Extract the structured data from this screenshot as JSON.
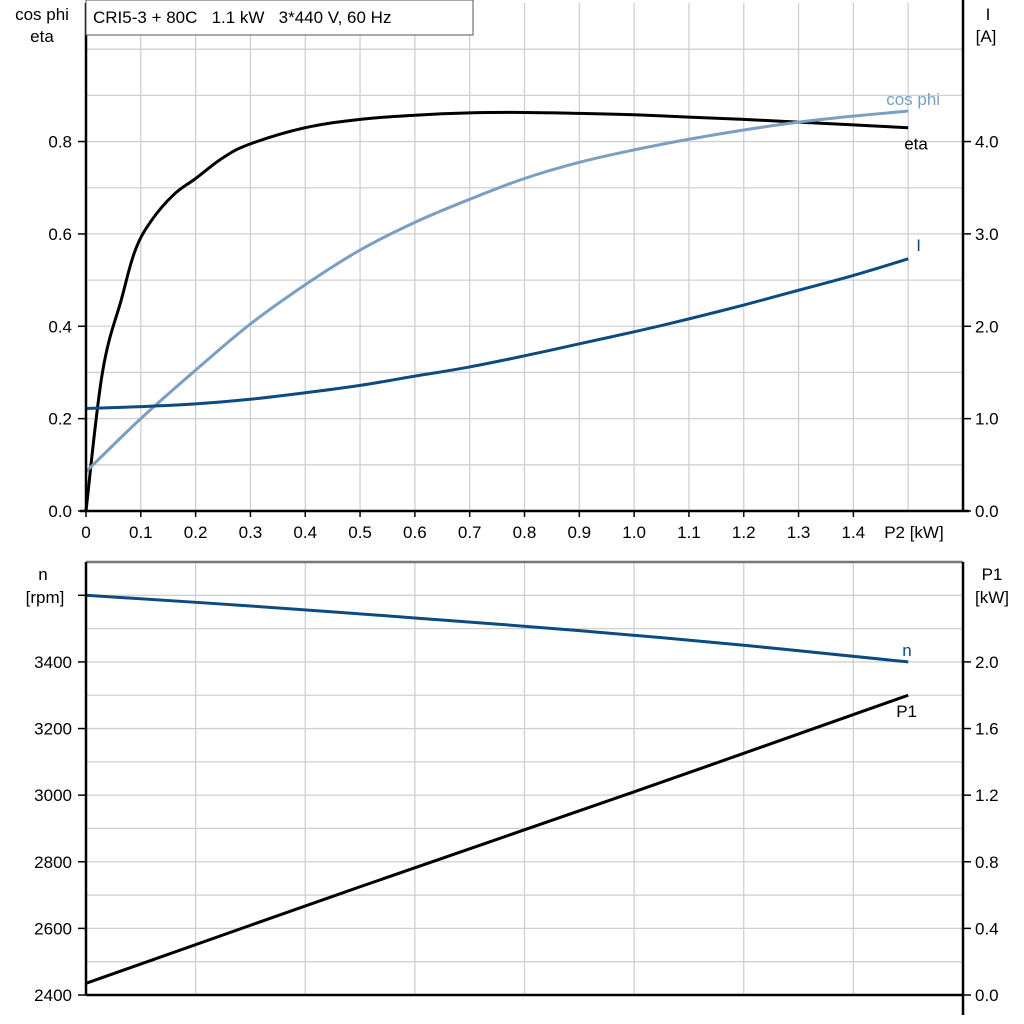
{
  "title": "CRI5-3 + 80C   1.1 kW   3*440 V, 60 Hz",
  "colors": {
    "eta": "#000000",
    "cos_phi": "#7a9fc2",
    "I": "#0d4a80",
    "n": "#0d4a80",
    "P1": "#000000",
    "grid": "#d0d0d0"
  },
  "chart_data": [
    {
      "type": "line",
      "xlabel": "P2 [kW]",
      "xlim": [
        0,
        1.6
      ],
      "x_ticks": [
        "0",
        "0.1",
        "0.2",
        "0.3",
        "0.4",
        "0.5",
        "0.6",
        "0.7",
        "0.8",
        "0.9",
        "1.0",
        "1.1",
        "1.2",
        "1.3",
        "1.4"
      ],
      "ylabel_left": [
        "cos phi",
        "eta"
      ],
      "ylim_left": [
        0,
        1.1
      ],
      "y_ticks_left": [
        "0.0",
        "0.2",
        "0.4",
        "0.6",
        "0.8"
      ],
      "ylabel_right": [
        "I",
        "[A]"
      ],
      "ylim_right": [
        0,
        5.5
      ],
      "y_ticks_right": [
        "0.0",
        "1.0",
        "2.0",
        "3.0",
        "4.0"
      ],
      "grid": true,
      "series": [
        {
          "name": "eta",
          "axis": "left",
          "x": [
            0,
            0.03,
            0.065,
            0.09,
            0.12,
            0.16,
            0.2,
            0.25,
            0.3,
            0.4,
            0.5,
            0.6,
            0.7,
            0.8,
            0.9,
            1.0,
            1.1,
            1.2,
            1.3,
            1.4,
            1.5
          ],
          "y": [
            0,
            0.3,
            0.46,
            0.565,
            0.63,
            0.685,
            0.72,
            0.765,
            0.795,
            0.83,
            0.848,
            0.857,
            0.862,
            0.863,
            0.861,
            0.858,
            0.853,
            0.848,
            0.842,
            0.836,
            0.83
          ]
        },
        {
          "name": "cos phi",
          "axis": "left",
          "x": [
            0,
            0.1,
            0.2,
            0.3,
            0.4,
            0.5,
            0.6,
            0.7,
            0.8,
            0.9,
            1.0,
            1.1,
            1.2,
            1.3,
            1.4,
            1.5
          ],
          "y": [
            0.085,
            0.2,
            0.305,
            0.405,
            0.49,
            0.565,
            0.625,
            0.675,
            0.72,
            0.755,
            0.782,
            0.805,
            0.825,
            0.842,
            0.855,
            0.866
          ]
        },
        {
          "name": "I",
          "axis": "right",
          "x": [
            0,
            0.1,
            0.2,
            0.3,
            0.4,
            0.5,
            0.6,
            0.7,
            0.8,
            0.9,
            1.0,
            1.1,
            1.2,
            1.3,
            1.4,
            1.5
          ],
          "y": [
            1.11,
            1.13,
            1.16,
            1.21,
            1.28,
            1.36,
            1.46,
            1.56,
            1.68,
            1.81,
            1.94,
            2.08,
            2.23,
            2.39,
            2.55,
            2.73
          ]
        }
      ]
    },
    {
      "type": "line",
      "xlim": [
        0,
        1.6
      ],
      "ylabel_left": [
        "n",
        "[rpm]"
      ],
      "ylim_left": [
        2400,
        3700
      ],
      "y_ticks_left": [
        "2400",
        "2600",
        "2800",
        "3000",
        "3200",
        "3400"
      ],
      "ylabel_right": [
        "P1",
        "[kW]"
      ],
      "ylim_right": [
        0,
        2.6
      ],
      "y_ticks_right": [
        "0.0",
        "0.4",
        "0.8",
        "1.2",
        "1.6",
        "2.0"
      ],
      "grid": true,
      "series": [
        {
          "name": "n",
          "axis": "left",
          "x": [
            0,
            0.3,
            0.6,
            0.9,
            1.2,
            1.5
          ],
          "y": [
            3600,
            3568,
            3532,
            3494,
            3450,
            3400
          ]
        },
        {
          "name": "P1",
          "axis": "right",
          "x": [
            0,
            0.5,
            1.0,
            1.5
          ],
          "y": [
            0.07,
            0.65,
            1.22,
            1.8
          ]
        }
      ]
    }
  ]
}
